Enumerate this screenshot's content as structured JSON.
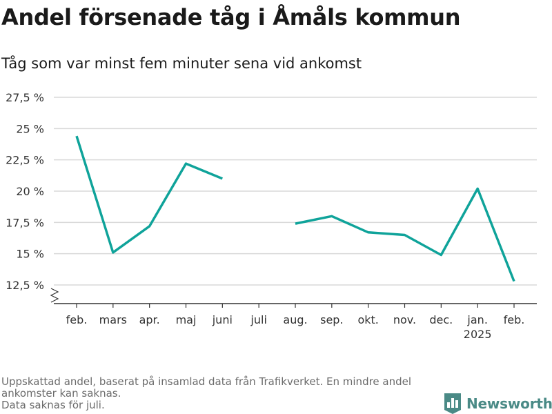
{
  "header": {
    "title": "Andel försenade tåg i Åmåls kommun",
    "subtitle": "Tåg som var minst fem minuter sena vid ankomst"
  },
  "footer": {
    "notes": [
      "Uppskattad andel, baserat på insamlad data från Trafikverket. En mindre andel ankomster kan saknas.",
      "Data saknas för juli."
    ],
    "brand": "Newsworthy",
    "brand_color": "#4a8a86"
  },
  "chart_data": {
    "type": "line",
    "title": "Andel försenade tåg i Åmåls kommun",
    "subtitle": "Tåg som var minst fem minuter sena vid ankomst",
    "categories": [
      "feb.",
      "mars",
      "apr.",
      "maj",
      "juni",
      "juli",
      "aug.",
      "sep.",
      "okt.",
      "nov.",
      "dec.",
      "jan.",
      "feb."
    ],
    "category_sublabels": [
      "",
      "",
      "",
      "",
      "",
      "",
      "",
      "",
      "",
      "",
      "",
      "2025",
      ""
    ],
    "series": [
      {
        "values": [
          24.4,
          15.1,
          17.2,
          22.2,
          21.0,
          null,
          17.4,
          18.0,
          16.7,
          16.5,
          14.9,
          20.2,
          12.8
        ],
        "color": "#0fa39a"
      }
    ],
    "yticks": [
      12.5,
      15,
      17.5,
      20,
      22.5,
      25,
      27.5
    ],
    "ytick_labels": [
      "12,5 %",
      "15 %",
      "17,5 %",
      "20 %",
      "22,5 %",
      "25 %",
      "27,5 %"
    ],
    "ylim": [
      11.0,
      27.5
    ],
    "y_axis_break": true,
    "grid": true,
    "legend": "none"
  }
}
